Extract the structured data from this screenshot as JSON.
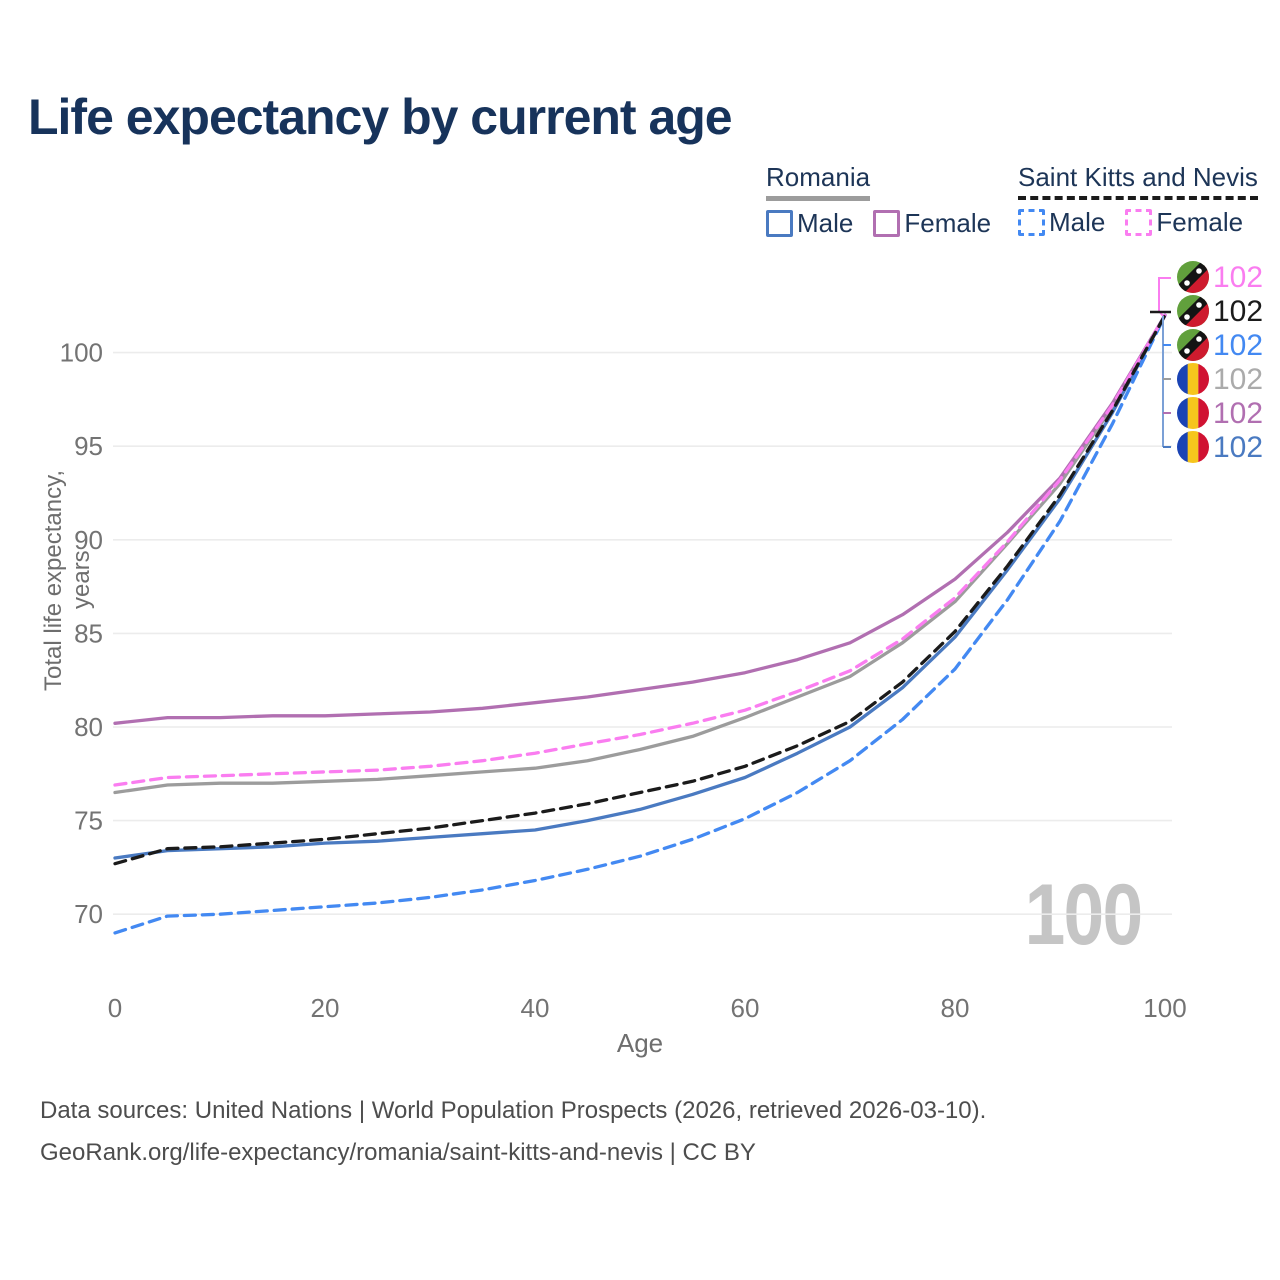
{
  "title": "Life expectancy by current age",
  "watermark_age": "100",
  "legend": {
    "romania": {
      "name": "Romania",
      "male_label": "Male",
      "female_label": "Female"
    },
    "saint_kitts_and_nevis": {
      "name": "Saint Kitts and Nevis",
      "male_label": "Male",
      "female_label": "Female"
    }
  },
  "footer": {
    "line1": "Data sources: United Nations | World Population Prospects (2026, retrieved 2026-03-10).",
    "line2": "GeoRank.org/life-expectancy/romania/saint-kitts-and-nevis | CC BY"
  },
  "chart_data": {
    "type": "line",
    "title": "Life expectancy by current age",
    "xlabel": "Age",
    "ylabel": "Total life expectancy, years",
    "grid": "horizontal-only",
    "legend_position": "top-right",
    "x": [
      0,
      5,
      10,
      15,
      20,
      25,
      30,
      35,
      40,
      45,
      50,
      55,
      60,
      65,
      70,
      75,
      80,
      85,
      90,
      95,
      100
    ],
    "xticks": [
      0,
      20,
      40,
      60,
      80,
      100
    ],
    "yticks": [
      70,
      75,
      80,
      85,
      90,
      95,
      100
    ],
    "xlim": [
      0,
      100
    ],
    "ylim": [
      67,
      103
    ],
    "series": [
      {
        "id": "romania-total",
        "name": "Romania Both sexes",
        "country": "Romania",
        "sex": "both",
        "style": "solid",
        "color": "#9c9c9c",
        "values": [
          76.5,
          76.9,
          77.0,
          77.0,
          77.1,
          77.2,
          77.4,
          77.6,
          77.8,
          78.2,
          78.8,
          79.5,
          80.5,
          81.6,
          82.7,
          84.5,
          86.7,
          89.8,
          93.0,
          97.1,
          102
        ]
      },
      {
        "id": "romania-female",
        "name": "Romania Female",
        "country": "Romania",
        "sex": "female",
        "style": "solid",
        "color": "#b16fb1",
        "values": [
          80.2,
          80.5,
          80.5,
          80.6,
          80.6,
          80.7,
          80.8,
          81.0,
          81.3,
          81.6,
          82.0,
          82.4,
          82.9,
          83.6,
          84.5,
          86.0,
          87.9,
          90.4,
          93.3,
          97.3,
          102
        ]
      },
      {
        "id": "romania-male",
        "name": "Romania Male",
        "country": "Romania",
        "sex": "male",
        "style": "solid",
        "color": "#4a7ac1",
        "values": [
          73.0,
          73.4,
          73.5,
          73.6,
          73.8,
          73.9,
          74.1,
          74.3,
          74.5,
          75.0,
          75.6,
          76.4,
          77.3,
          78.6,
          80.0,
          82.1,
          84.8,
          88.4,
          92.2,
          96.8,
          102
        ]
      },
      {
        "id": "skn-male",
        "name": "Saint Kitts and Nevis Male",
        "country": "Saint Kitts and Nevis",
        "sex": "male",
        "style": "dashed",
        "color": "#4389f2",
        "values": [
          69.0,
          69.9,
          70.0,
          70.2,
          70.4,
          70.6,
          70.9,
          71.3,
          71.8,
          72.4,
          73.1,
          74.0,
          75.1,
          76.5,
          78.2,
          80.4,
          83.1,
          86.8,
          91.0,
          96.2,
          102
        ]
      },
      {
        "id": "skn-female",
        "name": "Saint Kitts and Nevis Female",
        "country": "Saint Kitts and Nevis",
        "sex": "female",
        "style": "dashed",
        "color": "#fa7df0",
        "values": [
          76.9,
          77.3,
          77.4,
          77.5,
          77.6,
          77.7,
          77.9,
          78.2,
          78.6,
          79.1,
          79.6,
          80.2,
          80.9,
          81.9,
          83.0,
          84.7,
          86.9,
          89.9,
          93.2,
          97.2,
          102
        ]
      },
      {
        "id": "skn-total",
        "name": "Saint Kitts and Nevis Both sexes",
        "country": "Saint Kitts and Nevis",
        "sex": "both",
        "style": "dashed",
        "color": "#1b1b1b",
        "values": [
          72.7,
          73.5,
          73.6,
          73.8,
          74.0,
          74.3,
          74.6,
          75.0,
          75.4,
          75.9,
          76.5,
          77.1,
          77.9,
          79.0,
          80.3,
          82.4,
          85.1,
          88.6,
          92.4,
          96.9,
          102
        ]
      }
    ],
    "end_labels": [
      {
        "flag": "kn",
        "country": "Saint Kitts and Nevis",
        "series": "skn-female",
        "value": "102",
        "color": "#fa7df0"
      },
      {
        "flag": "kn",
        "country": "Saint Kitts and Nevis",
        "series": "skn-total",
        "value": "102",
        "color": "#1b1b1b"
      },
      {
        "flag": "kn",
        "country": "Saint Kitts and Nevis",
        "series": "skn-male",
        "value": "102",
        "color": "#4389f2"
      },
      {
        "flag": "ro",
        "country": "Romania",
        "series": "romania-total",
        "value": "102",
        "color": "#ababab"
      },
      {
        "flag": "ro",
        "country": "Romania",
        "series": "romania-female",
        "value": "102",
        "color": "#b16fb1"
      },
      {
        "flag": "ro",
        "country": "Romania",
        "series": "romania-male",
        "value": "102",
        "color": "#4a7ac1"
      }
    ],
    "flag_colors": {
      "ro": {
        "blue": "#1a43b4",
        "yellow": "#f6c51d",
        "red": "#d01232"
      },
      "kn": {
        "green": "#61a03c",
        "red": "#ce1b2e",
        "band": "#141414",
        "star": "#ffffff"
      }
    }
  }
}
